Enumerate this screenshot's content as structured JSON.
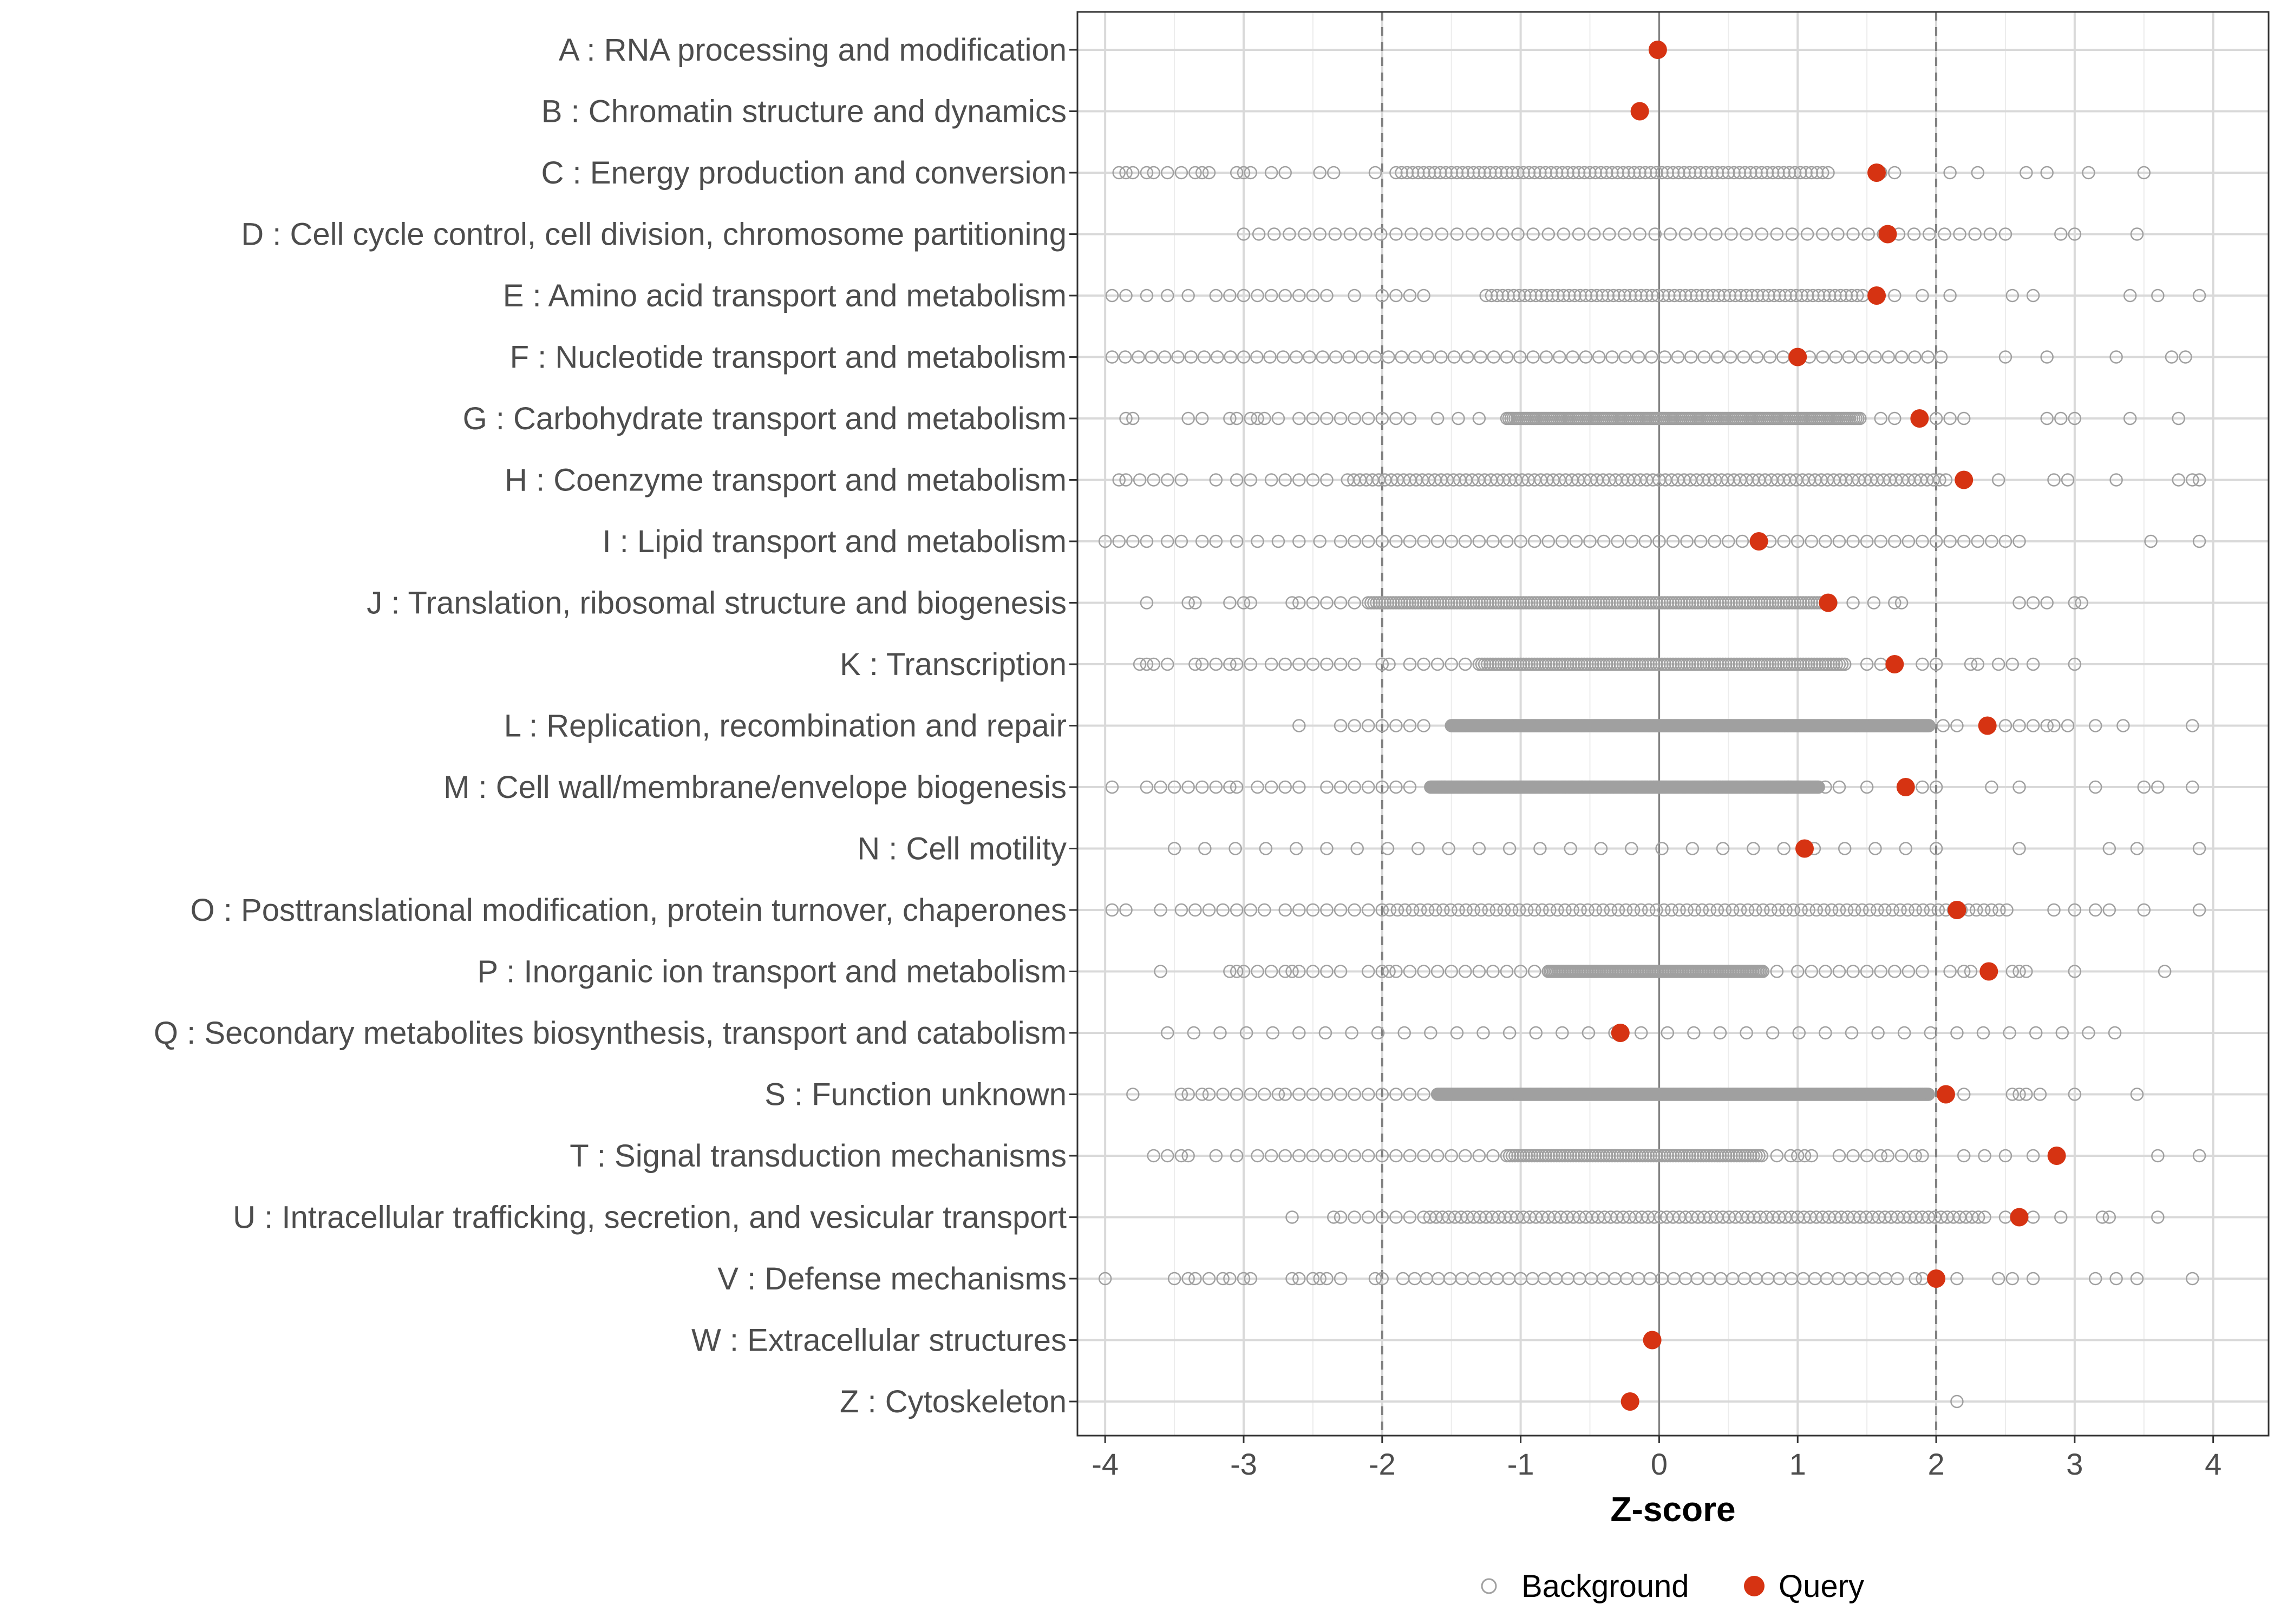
{
  "chart_data": {
    "type": "scatter",
    "title": "",
    "xlabel": "Z-score",
    "ylabel": "",
    "xlim": [
      -4.2,
      4.4
    ],
    "x_ticks": [
      -4,
      -3,
      -2,
      -1,
      0,
      1,
      2,
      3,
      4
    ],
    "x_tick_labels": [
      "-4",
      "-3",
      "-2",
      "-1",
      "0",
      "1",
      "2",
      "3",
      "4"
    ],
    "reference_lines": [
      {
        "x": -2,
        "style": "dashed"
      },
      {
        "x": 0,
        "style": "solid"
      },
      {
        "x": 2,
        "style": "dashed"
      }
    ],
    "grid": true,
    "legend": {
      "position": "bottom",
      "entries": [
        {
          "name": "Background",
          "marker": "open-circle",
          "color": "#a0a0a0"
        },
        {
          "name": "Query",
          "marker": "filled-circle",
          "color": "#d63312"
        }
      ]
    },
    "categories": [
      {
        "label": "A : RNA processing and modification",
        "query": -0.01,
        "bg_min": null,
        "bg_max": null,
        "bg_step": 0.1,
        "bg_extra": []
      },
      {
        "label": "B : Chromatin structure and dynamics",
        "query": -0.14,
        "bg_min": null,
        "bg_max": null,
        "bg_step": 0.1,
        "bg_extra": []
      },
      {
        "label": "C : Energy production and conversion",
        "query": 1.57,
        "bg_min": -1.9,
        "bg_max": 1.25,
        "bg_step": 0.04,
        "bg_extra": [
          -3.9,
          -3.85,
          -3.8,
          -3.7,
          -3.65,
          -3.55,
          -3.45,
          -3.35,
          -3.3,
          -3.25,
          -3.05,
          -3.0,
          -2.95,
          -2.8,
          -2.7,
          -2.45,
          -2.35,
          -2.05,
          1.6,
          1.7,
          2.1,
          2.3,
          2.65,
          2.8,
          3.1,
          3.5
        ]
      },
      {
        "label": "D : Cell cycle control, cell division, chromosome partitioning",
        "query": 1.65,
        "bg_min": -3.0,
        "bg_max": 2.55,
        "bg_step": 0.11,
        "bg_extra": [
          2.9,
          3.0,
          3.45
        ]
      },
      {
        "label": "E : Amino acid transport and metabolism",
        "query": 1.57,
        "bg_min": -1.25,
        "bg_max": 1.5,
        "bg_step": 0.04,
        "bg_extra": [
          -3.95,
          -3.85,
          -3.7,
          -3.55,
          -3.4,
          -3.2,
          -3.1,
          -3.0,
          -2.9,
          -2.8,
          -2.7,
          -2.6,
          -2.5,
          -2.4,
          -2.2,
          -2.0,
          -1.9,
          -1.8,
          -1.7,
          1.7,
          1.9,
          2.1,
          2.55,
          2.7,
          3.4,
          3.6,
          3.9
        ]
      },
      {
        "label": "F : Nucleotide transport and metabolism",
        "query": 1.0,
        "bg_min": -3.95,
        "bg_max": 2.1,
        "bg_step": 0.095,
        "bg_extra": [
          2.5,
          2.8,
          3.3,
          3.7,
          3.8
        ]
      },
      {
        "label": "G : Carbohydrate transport and metabolism",
        "query": 1.88,
        "bg_min": -1.1,
        "bg_max": 1.45,
        "bg_step": 0.015,
        "bg_extra": [
          -3.85,
          -3.8,
          -3.4,
          -3.3,
          -3.1,
          -3.05,
          -2.95,
          -2.9,
          -2.85,
          -2.75,
          -2.6,
          -2.5,
          -2.4,
          -2.3,
          -2.2,
          -2.1,
          -2.0,
          -1.9,
          -1.8,
          -1.6,
          -1.45,
          -1.3,
          1.6,
          1.7,
          2.0,
          2.1,
          2.2,
          2.8,
          2.9,
          3.0,
          3.4,
          3.75
        ]
      },
      {
        "label": "H : Coenzyme transport and metabolism",
        "query": 2.2,
        "bg_min": -2.25,
        "bg_max": 2.1,
        "bg_step": 0.045,
        "bg_extra": [
          -3.9,
          -3.85,
          -3.75,
          -3.65,
          -3.55,
          -3.45,
          -3.2,
          -3.05,
          -2.95,
          -2.8,
          -2.7,
          -2.6,
          -2.5,
          -2.4,
          2.45,
          2.85,
          2.95,
          3.3,
          3.75,
          3.85,
          3.9
        ]
      },
      {
        "label": "I : Lipid transport and metabolism",
        "query": 0.72,
        "bg_min": -2.3,
        "bg_max": 2.65,
        "bg_step": 0.1,
        "bg_extra": [
          -4.0,
          -3.9,
          -3.8,
          -3.7,
          -3.55,
          -3.45,
          -3.3,
          -3.2,
          -3.05,
          -2.9,
          -2.75,
          -2.6,
          -2.45,
          3.55,
          3.9
        ]
      },
      {
        "label": "J : Translation, ribosomal structure and biogenesis",
        "query": 1.22,
        "bg_min": -2.1,
        "bg_max": 1.25,
        "bg_step": 0.02,
        "bg_extra": [
          -3.7,
          -3.4,
          -3.35,
          -3.1,
          -3.0,
          -2.95,
          -2.65,
          -2.6,
          -2.5,
          -2.4,
          -2.3,
          -2.2,
          1.4,
          1.55,
          1.7,
          1.75,
          2.6,
          2.7,
          2.8,
          3.0,
          3.05
        ]
      },
      {
        "label": "K : Transcription",
        "query": 1.7,
        "bg_min": -1.3,
        "bg_max": 1.35,
        "bg_step": 0.02,
        "bg_extra": [
          -3.75,
          -3.7,
          -3.65,
          -3.55,
          -3.35,
          -3.3,
          -3.2,
          -3.1,
          -3.05,
          -2.95,
          -2.8,
          -2.7,
          -2.6,
          -2.5,
          -2.4,
          -2.3,
          -2.2,
          -2.0,
          -1.95,
          -1.8,
          -1.7,
          -1.6,
          -1.5,
          -1.4,
          1.5,
          1.6,
          1.9,
          2.0,
          2.25,
          2.3,
          2.45,
          2.55,
          2.7,
          3.0
        ]
      },
      {
        "label": "L : Replication, recombination and repair",
        "query": 2.37,
        "bg_min": -1.5,
        "bg_max": 1.95,
        "bg_step": 0.008,
        "bg_extra": [
          -2.6,
          -2.3,
          -2.2,
          -2.1,
          -2.0,
          -1.9,
          -1.8,
          -1.7,
          2.05,
          2.15,
          2.5,
          2.6,
          2.7,
          2.8,
          2.85,
          2.95,
          3.15,
          3.35,
          3.85
        ]
      },
      {
        "label": "M : Cell wall/membrane/envelope biogenesis",
        "query": 1.78,
        "bg_min": -1.65,
        "bg_max": 1.15,
        "bg_step": 0.008,
        "bg_extra": [
          -3.95,
          -3.7,
          -3.6,
          -3.5,
          -3.4,
          -3.3,
          -3.2,
          -3.1,
          -3.05,
          -2.9,
          -2.8,
          -2.7,
          -2.6,
          -2.4,
          -2.3,
          -2.2,
          -2.1,
          -2.0,
          -1.9,
          -1.8,
          1.2,
          1.3,
          1.5,
          1.9,
          2.0,
          2.4,
          2.6,
          3.15,
          3.5,
          3.6,
          3.85
        ]
      },
      {
        "label": "N : Cell motility",
        "query": 1.05,
        "bg_min": -3.5,
        "bg_max": 2.2,
        "bg_step": 0.22,
        "bg_extra": [
          2.6,
          3.25,
          3.45,
          3.9
        ]
      },
      {
        "label": "O : Posttranslational modification, protein turnover, chaperones",
        "query": 2.15,
        "bg_min": -2.0,
        "bg_max": 2.55,
        "bg_step": 0.055,
        "bg_extra": [
          -3.95,
          -3.85,
          -3.6,
          -3.45,
          -3.35,
          -3.25,
          -3.15,
          -3.05,
          -2.95,
          -2.85,
          -2.7,
          -2.6,
          -2.5,
          -2.4,
          -2.3,
          -2.2,
          -2.1,
          2.85,
          3.0,
          3.15,
          3.25,
          3.5,
          3.9
        ]
      },
      {
        "label": "P : Inorganic ion transport and metabolism",
        "query": 2.38,
        "bg_min": -0.8,
        "bg_max": 0.75,
        "bg_step": 0.012,
        "bg_extra": [
          -3.6,
          -3.1,
          -3.05,
          -3.0,
          -2.9,
          -2.8,
          -2.7,
          -2.65,
          -2.6,
          -2.5,
          -2.4,
          -2.3,
          -2.1,
          -2.0,
          -1.95,
          -1.9,
          -1.8,
          -1.7,
          -1.6,
          -1.5,
          -1.4,
          -1.3,
          -1.2,
          -1.1,
          -1.0,
          -0.9,
          0.85,
          1.0,
          1.1,
          1.2,
          1.3,
          1.4,
          1.5,
          1.6,
          1.7,
          1.8,
          1.9,
          2.1,
          2.2,
          2.25,
          2.55,
          2.6,
          2.65,
          3.0,
          3.65
        ]
      },
      {
        "label": "Q : Secondary metabolites biosynthesis, transport and catabolism",
        "query": -0.28,
        "bg_min": -3.55,
        "bg_max": 3.45,
        "bg_step": 0.19,
        "bg_extra": []
      },
      {
        "label": "S : Function unknown",
        "query": 2.07,
        "bg_min": -1.6,
        "bg_max": 1.95,
        "bg_step": 0.008,
        "bg_extra": [
          -3.8,
          -3.45,
          -3.4,
          -3.3,
          -3.25,
          -3.15,
          -3.05,
          -2.95,
          -2.85,
          -2.75,
          -2.7,
          -2.6,
          -2.5,
          -2.4,
          -2.3,
          -2.2,
          -2.1,
          -2.0,
          -1.9,
          -1.8,
          -1.7,
          2.2,
          2.55,
          2.6,
          2.65,
          2.75,
          3.0,
          3.45
        ]
      },
      {
        "label": "T : Signal transduction mechanisms",
        "query": 2.87,
        "bg_min": -1.1,
        "bg_max": 0.75,
        "bg_step": 0.02,
        "bg_extra": [
          -3.65,
          -3.55,
          -3.45,
          -3.4,
          -3.2,
          -3.05,
          -2.9,
          -2.8,
          -2.7,
          -2.6,
          -2.5,
          -2.4,
          -2.3,
          -2.2,
          -2.1,
          -2.0,
          -1.9,
          -1.8,
          -1.7,
          -1.6,
          -1.5,
          -1.4,
          -1.3,
          -1.2,
          0.85,
          0.95,
          1.0,
          1.05,
          1.1,
          1.3,
          1.4,
          1.5,
          1.6,
          1.65,
          1.75,
          1.85,
          1.9,
          2.2,
          2.35,
          2.5,
          2.7,
          3.6,
          3.9
        ]
      },
      {
        "label": "U : Intracellular trafficking, secretion, and vesicular transport",
        "query": 2.6,
        "bg_min": -1.7,
        "bg_max": 2.35,
        "bg_step": 0.045,
        "bg_extra": [
          -2.65,
          -2.35,
          -2.3,
          -2.2,
          -2.1,
          -2.0,
          -1.9,
          -1.8,
          2.5,
          2.7,
          2.9,
          3.2,
          3.25,
          3.6
        ]
      },
      {
        "label": "V : Defense mechanisms",
        "query": 2.0,
        "bg_min": -1.85,
        "bg_max": 1.75,
        "bg_step": 0.085,
        "bg_extra": [
          -4.0,
          -3.5,
          -3.4,
          -3.35,
          -3.25,
          -3.15,
          -3.1,
          -3.0,
          -2.95,
          -2.65,
          -2.6,
          -2.5,
          -2.45,
          -2.4,
          -2.3,
          -2.05,
          -2.0,
          1.85,
          1.9,
          2.15,
          2.45,
          2.55,
          2.7,
          3.15,
          3.3,
          3.45,
          3.85
        ]
      },
      {
        "label": "W : Extracellular structures",
        "query": -0.05,
        "bg_min": null,
        "bg_max": null,
        "bg_step": 0.1,
        "bg_extra": []
      },
      {
        "label": "Z : Cytoskeleton",
        "query": -0.21,
        "bg_min": null,
        "bg_max": null,
        "bg_step": 0.1,
        "bg_extra": [
          2.15
        ]
      }
    ]
  }
}
